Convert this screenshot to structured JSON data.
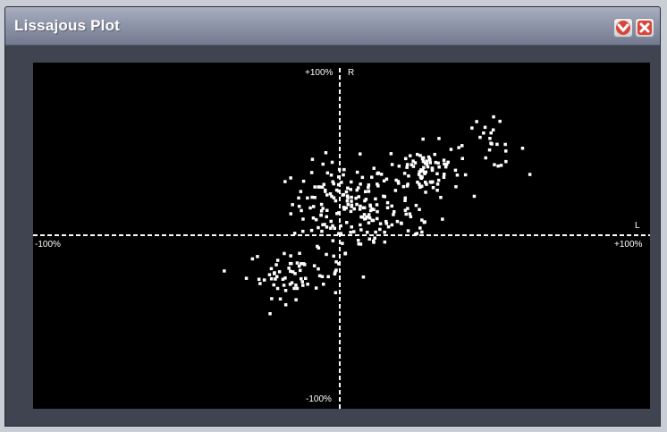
{
  "window": {
    "title": "Lissajous Plot",
    "minimize_icon": "chevron-down-icon",
    "close_icon": "close-icon"
  },
  "plot": {
    "label_top": "+100%",
    "label_r": "R",
    "label_bottom": "-100%",
    "label_left": "-100%",
    "label_right": "+100%",
    "label_l": "L",
    "axis_color": "#ffffff",
    "background": "#000000"
  },
  "chart_data": {
    "type": "scatter",
    "title": "Lissajous Plot",
    "xlabel": "L",
    "ylabel": "R",
    "xlim": [
      -100,
      100
    ],
    "ylim": [
      -100,
      100
    ],
    "grid": false,
    "clusters": [
      {
        "cx": 0,
        "cy": 20,
        "sx": 8,
        "sy": 12,
        "n": 130
      },
      {
        "cx": 27,
        "cy": 40,
        "sx": 6,
        "sy": 8,
        "n": 90
      },
      {
        "cx": -15,
        "cy": -22,
        "sx": 8,
        "sy": 7,
        "n": 70
      },
      {
        "cx": 48,
        "cy": 55,
        "sx": 6,
        "sy": 7,
        "n": 25
      },
      {
        "cx": 15,
        "cy": 8,
        "sx": 10,
        "sy": 10,
        "n": 60
      }
    ]
  }
}
